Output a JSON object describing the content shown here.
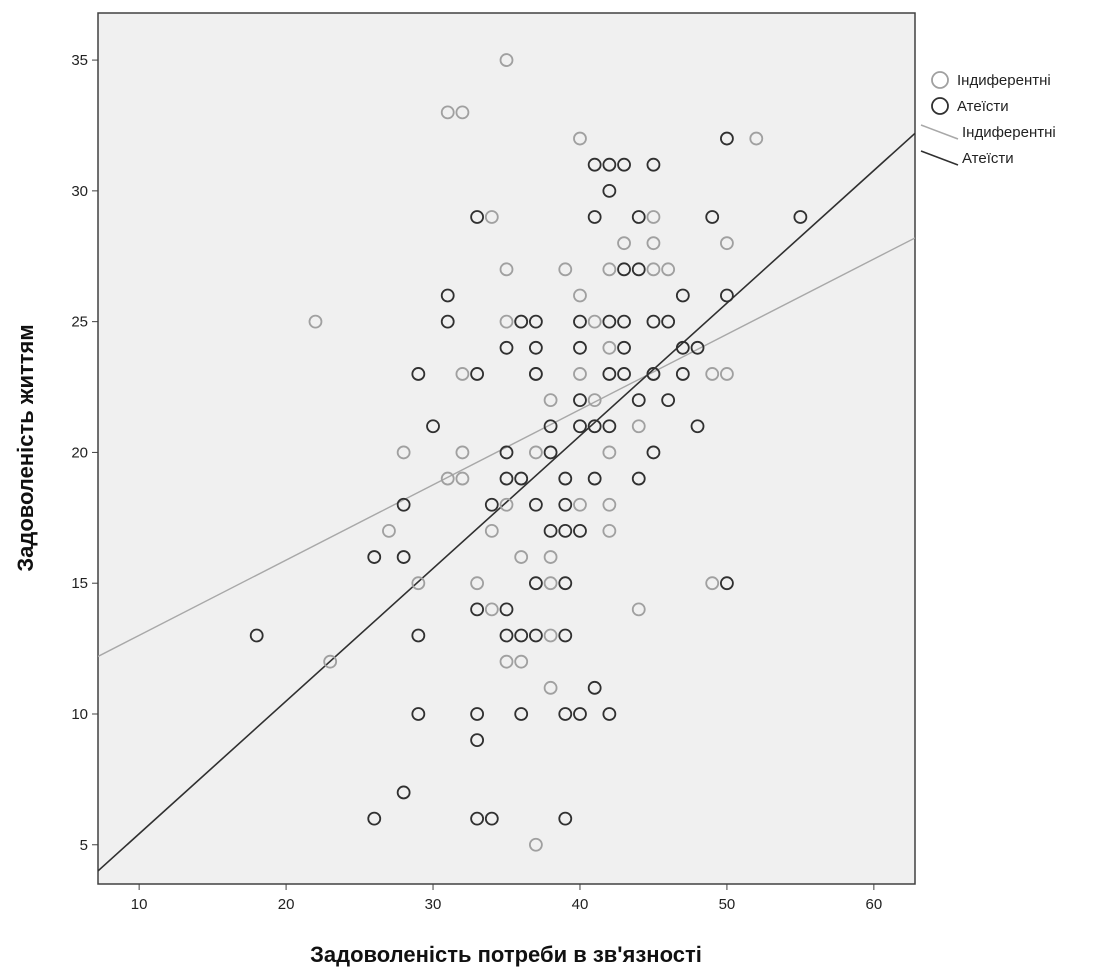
{
  "chart_data": {
    "type": "scatter",
    "xlabel": "Задоволеність потреби в зв'язності",
    "ylabel": "Задоволеність життям",
    "xlim": [
      7.2,
      62.8
    ],
    "ylim": [
      3.5,
      36.8
    ],
    "xticks": [
      10,
      20,
      30,
      40,
      50,
      60
    ],
    "yticks": [
      5,
      10,
      15,
      20,
      25,
      30,
      35
    ],
    "grid": false,
    "plot_background": "#f0f0f0",
    "legend_position": "right",
    "series": [
      {
        "name": "Індиферентні",
        "marker": "open-circle",
        "color": "#a0a0a0",
        "points": [
          [
            35,
            35
          ],
          [
            31,
            33
          ],
          [
            32,
            33
          ],
          [
            40,
            32
          ],
          [
            52,
            32
          ],
          [
            34,
            29
          ],
          [
            45,
            29
          ],
          [
            43,
            28
          ],
          [
            45,
            28
          ],
          [
            50,
            28
          ],
          [
            35,
            27
          ],
          [
            39,
            27
          ],
          [
            42,
            27
          ],
          [
            45,
            27
          ],
          [
            46,
            27
          ],
          [
            40,
            26
          ],
          [
            22,
            25
          ],
          [
            35,
            25
          ],
          [
            36,
            25
          ],
          [
            41,
            25
          ],
          [
            42,
            24
          ],
          [
            32,
            23
          ],
          [
            37,
            23
          ],
          [
            40,
            23
          ],
          [
            45,
            23
          ],
          [
            49,
            23
          ],
          [
            50,
            23
          ],
          [
            38,
            22
          ],
          [
            41,
            22
          ],
          [
            41,
            21
          ],
          [
            44,
            21
          ],
          [
            28,
            20
          ],
          [
            32,
            20
          ],
          [
            37,
            20
          ],
          [
            42,
            20
          ],
          [
            31,
            19
          ],
          [
            32,
            19
          ],
          [
            35,
            18
          ],
          [
            40,
            18
          ],
          [
            42,
            18
          ],
          [
            27,
            17
          ],
          [
            34,
            17
          ],
          [
            42,
            17
          ],
          [
            36,
            16
          ],
          [
            38,
            16
          ],
          [
            29,
            15
          ],
          [
            33,
            15
          ],
          [
            38,
            15
          ],
          [
            49,
            15
          ],
          [
            34,
            14
          ],
          [
            44,
            14
          ],
          [
            38,
            13
          ],
          [
            23,
            12
          ],
          [
            35,
            12
          ],
          [
            36,
            12
          ],
          [
            38,
            11
          ],
          [
            37,
            5
          ]
        ]
      },
      {
        "name": "Атеїсти",
        "marker": "open-circle",
        "color": "#303030",
        "points": [
          [
            50,
            32
          ],
          [
            41,
            31
          ],
          [
            42,
            31
          ],
          [
            43,
            31
          ],
          [
            45,
            31
          ],
          [
            42,
            30
          ],
          [
            33,
            29
          ],
          [
            41,
            29
          ],
          [
            44,
            29
          ],
          [
            49,
            29
          ],
          [
            55,
            29
          ],
          [
            43,
            27
          ],
          [
            44,
            27
          ],
          [
            31,
            26
          ],
          [
            47,
            26
          ],
          [
            50,
            26
          ],
          [
            31,
            25
          ],
          [
            36,
            25
          ],
          [
            37,
            25
          ],
          [
            40,
            25
          ],
          [
            42,
            25
          ],
          [
            43,
            25
          ],
          [
            45,
            25
          ],
          [
            46,
            25
          ],
          [
            35,
            24
          ],
          [
            37,
            24
          ],
          [
            40,
            24
          ],
          [
            43,
            24
          ],
          [
            47,
            24
          ],
          [
            48,
            24
          ],
          [
            29,
            23
          ],
          [
            33,
            23
          ],
          [
            37,
            23
          ],
          [
            42,
            23
          ],
          [
            43,
            23
          ],
          [
            45,
            23
          ],
          [
            47,
            23
          ],
          [
            40,
            22
          ],
          [
            44,
            22
          ],
          [
            46,
            22
          ],
          [
            30,
            21
          ],
          [
            38,
            21
          ],
          [
            40,
            21
          ],
          [
            41,
            21
          ],
          [
            42,
            21
          ],
          [
            48,
            21
          ],
          [
            35,
            20
          ],
          [
            38,
            20
          ],
          [
            45,
            20
          ],
          [
            35,
            19
          ],
          [
            36,
            19
          ],
          [
            39,
            19
          ],
          [
            41,
            19
          ],
          [
            44,
            19
          ],
          [
            28,
            18
          ],
          [
            34,
            18
          ],
          [
            37,
            18
          ],
          [
            39,
            18
          ],
          [
            38,
            17
          ],
          [
            39,
            17
          ],
          [
            40,
            17
          ],
          [
            26,
            16
          ],
          [
            28,
            16
          ],
          [
            37,
            15
          ],
          [
            39,
            15
          ],
          [
            50,
            15
          ],
          [
            33,
            14
          ],
          [
            35,
            14
          ],
          [
            18,
            13
          ],
          [
            29,
            13
          ],
          [
            35,
            13
          ],
          [
            36,
            13
          ],
          [
            37,
            13
          ],
          [
            39,
            13
          ],
          [
            41,
            11
          ],
          [
            29,
            10
          ],
          [
            33,
            10
          ],
          [
            36,
            10
          ],
          [
            39,
            10
          ],
          [
            40,
            10
          ],
          [
            42,
            10
          ],
          [
            33,
            9
          ],
          [
            28,
            7
          ],
          [
            26,
            6
          ],
          [
            33,
            6
          ],
          [
            34,
            6
          ],
          [
            39,
            6
          ]
        ]
      }
    ],
    "fit_lines": [
      {
        "name": "Індиферентні",
        "color": "#a8a8a8",
        "x": [
          7.2,
          62.8
        ],
        "y": [
          12.2,
          28.2
        ]
      },
      {
        "name": "Атеїсти",
        "color": "#303030",
        "x": [
          7.2,
          62.8
        ],
        "y": [
          4.0,
          32.2
        ]
      }
    ],
    "legend": [
      {
        "label": "Індиферентні",
        "kind": "marker",
        "color": "#a0a0a0"
      },
      {
        "label": "Атеїсти",
        "kind": "marker",
        "color": "#303030"
      },
      {
        "label": "Індиферентні",
        "kind": "line",
        "color": "#a8a8a8"
      },
      {
        "label": "Атеїсти",
        "kind": "line",
        "color": "#303030"
      }
    ]
  }
}
